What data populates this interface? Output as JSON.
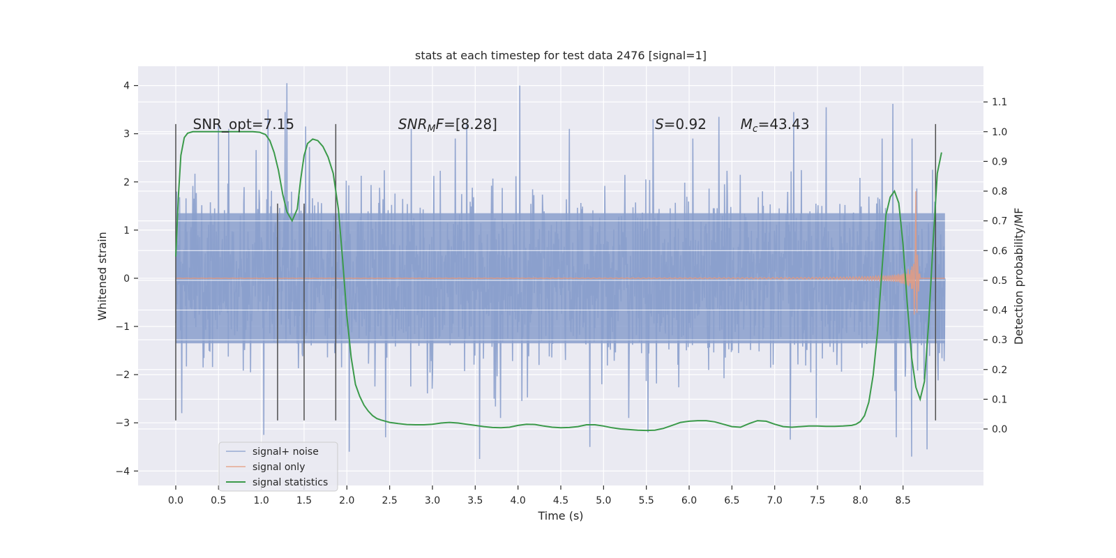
{
  "chart_data": {
    "type": "line",
    "title": "stats at each timestep for test data 2476 [signal=1]",
    "xlabel": "Time (s)",
    "ylabel_left": "Whitened strain",
    "ylabel_right": "Detection probability/MF",
    "xlim": [
      -0.44,
      9.44
    ],
    "ylim_left": [
      -4.3,
      4.4
    ],
    "ylim_right": [
      -0.19,
      1.22
    ],
    "xticks": [
      0.0,
      0.5,
      1.0,
      1.5,
      2.0,
      2.5,
      3.0,
      3.5,
      4.0,
      4.5,
      5.0,
      5.5,
      6.0,
      6.5,
      7.0,
      7.5,
      8.0,
      8.5
    ],
    "xtick_labels": [
      "0.0",
      "0.5",
      "1.0",
      "1.5",
      "2.0",
      "2.5",
      "3.0",
      "3.5",
      "4.0",
      "4.5",
      "5.0",
      "5.5",
      "6.0",
      "6.5",
      "7.0",
      "7.5",
      "8.0",
      "8.5"
    ],
    "yticks_left": [
      -4,
      -3,
      -2,
      -1,
      0,
      1,
      2,
      3,
      4
    ],
    "ytick_labels_left": [
      "−4",
      "−3",
      "−2",
      "−1",
      "0",
      "1",
      "2",
      "3",
      "4"
    ],
    "yticks_right": [
      0.0,
      0.1,
      0.2,
      0.3,
      0.4,
      0.5,
      0.6,
      0.7,
      0.8,
      0.9,
      1.0,
      1.1
    ],
    "ytick_labels_right": [
      "0.0",
      "0.1",
      "0.2",
      "0.3",
      "0.4",
      "0.5",
      "0.6",
      "0.7",
      "0.8",
      "0.9",
      "1.0",
      "1.1"
    ],
    "grid": true,
    "legend_position": "lower-left",
    "annotations": [
      {
        "x": 0.2,
        "y": 3.2,
        "parts": [
          {
            "t": "SNR_opt=7.15",
            "i": false
          }
        ]
      },
      {
        "x": 2.6,
        "y": 3.2,
        "parts": [
          {
            "t": "SNR",
            "i": true
          },
          {
            "t": "M",
            "i": true,
            "sub": true
          },
          {
            "t": "F",
            "i": true
          },
          {
            "t": "=[8.28]",
            "i": false
          }
        ]
      },
      {
        "x": 5.6,
        "y": 3.2,
        "parts": [
          {
            "t": "S",
            "i": true
          },
          {
            "t": "=0.92",
            "i": false
          }
        ]
      },
      {
        "x": 6.6,
        "y": 3.2,
        "parts": [
          {
            "t": "M",
            "i": true
          },
          {
            "t": "c",
            "i": true,
            "sub": true
          },
          {
            "t": "=43.43",
            "i": false
          }
        ]
      }
    ],
    "vlines": [
      {
        "x": 0.0,
        "y0": -2.95,
        "y1": 3.2
      },
      {
        "x": 1.19,
        "y0": -2.95,
        "y1": 1.55
      },
      {
        "x": 1.5,
        "y0": -2.95,
        "y1": 1.55
      },
      {
        "x": 1.87,
        "y0": -2.95,
        "y1": 3.2
      },
      {
        "x": 8.88,
        "y0": -2.95,
        "y1": 3.2
      }
    ],
    "noise": {
      "x_start": 0.0,
      "x_end": 8.99,
      "core_amplitude": 1.35,
      "peaks": [
        {
          "x": 1.3,
          "y": 4.05
        },
        {
          "x": 1.28,
          "y": 3.45
        },
        {
          "x": 0.5,
          "y": 3.22
        },
        {
          "x": 4.02,
          "y": 4.0
        },
        {
          "x": 5.58,
          "y": 3.3
        },
        {
          "x": 6.35,
          "y": 3.35
        },
        {
          "x": 3.4,
          "y": 3.2
        },
        {
          "x": 7.22,
          "y": 3.45
        },
        {
          "x": 7.6,
          "y": 3.55
        },
        {
          "x": 8.38,
          "y": 3.62
        },
        {
          "x": 1.08,
          "y": 3.5
        },
        {
          "x": 4.6,
          "y": 3.1
        },
        {
          "x": 2.75,
          "y": 3.1
        },
        {
          "x": 1.52,
          "y": 3.15
        },
        {
          "x": 0.62,
          "y": 3.1
        },
        {
          "x": 2.03,
          "y": -3.6
        },
        {
          "x": 3.55,
          "y": -3.75
        },
        {
          "x": 8.42,
          "y": -3.3
        },
        {
          "x": 8.6,
          "y": -3.7
        },
        {
          "x": 8.78,
          "y": -3.55
        },
        {
          "x": 2.45,
          "y": -3.3
        },
        {
          "x": 4.84,
          "y": -3.5
        },
        {
          "x": 5.52,
          "y": -3.2
        },
        {
          "x": 7.18,
          "y": -3.35
        },
        {
          "x": 1.03,
          "y": -3.25
        },
        {
          "x": 0.07,
          "y": -2.8
        }
      ]
    },
    "signal_only": {
      "x_start": 0.0,
      "x_end": 8.99,
      "merger_time": 8.65,
      "peak_amplitude": 1.85
    },
    "series": [
      {
        "name": "signal+ noise",
        "color": "#8a9fcc"
      },
      {
        "name": "signal only",
        "color": "#e59b7f"
      },
      {
        "name": "signal statistics",
        "color": "#3b9a4a",
        "axis": "right",
        "x": [
          0.0,
          0.03,
          0.06,
          0.1,
          0.14,
          0.2,
          0.3,
          0.5,
          0.7,
          0.9,
          0.98,
          1.05,
          1.1,
          1.15,
          1.2,
          1.25,
          1.3,
          1.36,
          1.42,
          1.46,
          1.5,
          1.54,
          1.6,
          1.66,
          1.72,
          1.78,
          1.84,
          1.9,
          1.95,
          2.0,
          2.05,
          2.1,
          2.15,
          2.2,
          2.25,
          2.3,
          2.35,
          2.4,
          2.5,
          2.6,
          2.7,
          2.8,
          2.9,
          3.0,
          3.1,
          3.2,
          3.3,
          3.4,
          3.5,
          3.6,
          3.7,
          3.8,
          3.9,
          4.0,
          4.1,
          4.2,
          4.3,
          4.4,
          4.5,
          4.6,
          4.7,
          4.8,
          4.9,
          5.0,
          5.1,
          5.2,
          5.3,
          5.4,
          5.5,
          5.6,
          5.7,
          5.8,
          5.9,
          6.0,
          6.1,
          6.2,
          6.3,
          6.4,
          6.5,
          6.6,
          6.7,
          6.8,
          6.9,
          7.0,
          7.1,
          7.2,
          7.3,
          7.4,
          7.5,
          7.6,
          7.7,
          7.8,
          7.9,
          7.95,
          8.0,
          8.05,
          8.1,
          8.15,
          8.2,
          8.25,
          8.3,
          8.35,
          8.4,
          8.45,
          8.5,
          8.55,
          8.6,
          8.65,
          8.7,
          8.75,
          8.8,
          8.85,
          8.9,
          8.95
        ],
        "values": [
          0.58,
          0.78,
          0.92,
          0.98,
          0.995,
          1.0,
          1.0,
          1.0,
          1.0,
          1.0,
          0.998,
          0.99,
          0.97,
          0.93,
          0.87,
          0.79,
          0.73,
          0.7,
          0.74,
          0.84,
          0.92,
          0.96,
          0.975,
          0.97,
          0.95,
          0.915,
          0.86,
          0.74,
          0.57,
          0.38,
          0.24,
          0.15,
          0.11,
          0.08,
          0.06,
          0.045,
          0.035,
          0.03,
          0.022,
          0.018,
          0.015,
          0.014,
          0.014,
          0.016,
          0.02,
          0.022,
          0.02,
          0.016,
          0.012,
          0.008,
          0.005,
          0.004,
          0.006,
          0.012,
          0.016,
          0.015,
          0.01,
          0.006,
          0.004,
          0.005,
          0.008,
          0.014,
          0.014,
          0.01,
          0.004,
          0.0,
          -0.002,
          -0.004,
          -0.005,
          -0.004,
          0.002,
          0.012,
          0.022,
          0.026,
          0.028,
          0.028,
          0.024,
          0.016,
          0.008,
          0.006,
          0.018,
          0.028,
          0.026,
          0.016,
          0.008,
          0.006,
          0.008,
          0.01,
          0.01,
          0.009,
          0.009,
          0.01,
          0.012,
          0.016,
          0.025,
          0.045,
          0.09,
          0.18,
          0.32,
          0.52,
          0.72,
          0.78,
          0.8,
          0.76,
          0.62,
          0.42,
          0.24,
          0.14,
          0.1,
          0.16,
          0.36,
          0.62,
          0.86,
          0.93
        ]
      }
    ]
  }
}
